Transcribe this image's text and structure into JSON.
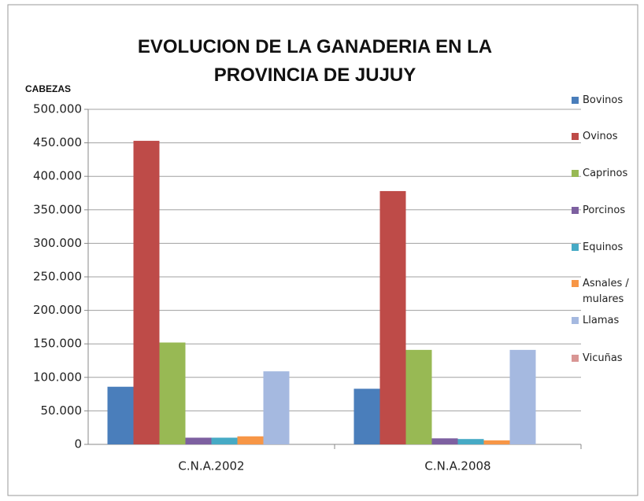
{
  "chart_data": {
    "type": "bar",
    "title": "EVOLUCION DE LA GANADERIA EN LA PROVINCIA DE JUJUY",
    "y_label": "CABEZAS",
    "categories": [
      "C.N.A.2002",
      "C.N.A.2008"
    ],
    "series": [
      {
        "name": "Bovinos",
        "color": "#4a7ebb",
        "values": [
          86000,
          83000
        ]
      },
      {
        "name": "Ovinos",
        "color": "#be4b48",
        "values": [
          453000,
          378000
        ]
      },
      {
        "name": "Caprinos",
        "color": "#98b954",
        "values": [
          152000,
          141000
        ]
      },
      {
        "name": "Porcinos",
        "color": "#7d60a0",
        "values": [
          10000,
          9000
        ]
      },
      {
        "name": "Equinos",
        "color": "#46aac5",
        "values": [
          10000,
          8000
        ]
      },
      {
        "name": "Asnales / mulares",
        "color": "#f79646",
        "values": [
          12000,
          6000
        ]
      },
      {
        "name": "Llamas",
        "color": "#a5b9e0",
        "values": [
          109000,
          141000
        ]
      },
      {
        "name": "Vicuñas",
        "color": "#d99694",
        "values": [
          0,
          0
        ]
      }
    ],
    "ylim": [
      0,
      500000
    ],
    "yticks": [
      0,
      {
        "value": 50000,
        "label": "50.000"
      },
      {
        "value": 100000,
        "label": "100.000"
      },
      {
        "value": 150000,
        "label": "150.000"
      },
      {
        "value": 200000,
        "label": "200.000"
      },
      {
        "value": 250000,
        "label": "250.000"
      },
      {
        "value": 300000,
        "label": "300.000"
      },
      {
        "value": 350000,
        "label": "350.000"
      },
      {
        "value": 400000,
        "label": "400.000"
      },
      {
        "value": 450000,
        "label": "450.000"
      },
      {
        "value": 500000,
        "label": "500.000"
      }
    ],
    "grid": true,
    "legend": "right"
  }
}
